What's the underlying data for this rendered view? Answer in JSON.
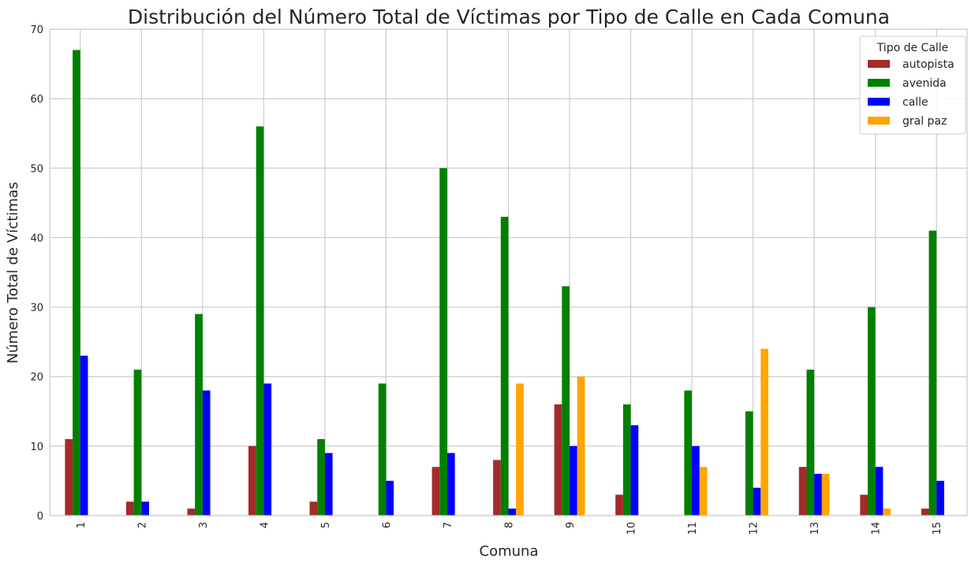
{
  "chart_data": {
    "type": "bar",
    "title": "Distribución del Número Total de Víctimas por Tipo de Calle en Cada Comuna",
    "xlabel": "Comuna",
    "ylabel": "Número Total de Víctimas",
    "categories": [
      "1",
      "2",
      "3",
      "4",
      "5",
      "6",
      "7",
      "8",
      "9",
      "10",
      "11",
      "12",
      "13",
      "14",
      "15"
    ],
    "ylim": [
      0,
      70
    ],
    "yticks": [
      0,
      10,
      20,
      30,
      40,
      50,
      60,
      70
    ],
    "grid": true,
    "legend": {
      "title": "Tipo de Calle",
      "placement": "top-right"
    },
    "series": [
      {
        "name": "autopista",
        "color": "#a52a2a",
        "values": [
          11,
          2,
          1,
          10,
          2,
          0,
          7,
          8,
          16,
          3,
          0,
          0,
          7,
          3,
          1
        ]
      },
      {
        "name": "avenida",
        "color": "#008000",
        "values": [
          67,
          21,
          29,
          56,
          11,
          19,
          50,
          43,
          33,
          16,
          18,
          15,
          21,
          30,
          41
        ]
      },
      {
        "name": "calle",
        "color": "#0000ff",
        "values": [
          23,
          2,
          18,
          19,
          9,
          5,
          9,
          1,
          10,
          13,
          10,
          4,
          6,
          7,
          5
        ]
      },
      {
        "name": "gral paz",
        "color": "#ffa500",
        "values": [
          0,
          0,
          0,
          0,
          0,
          0,
          0,
          19,
          20,
          0,
          7,
          24,
          6,
          1,
          0
        ]
      }
    ]
  }
}
